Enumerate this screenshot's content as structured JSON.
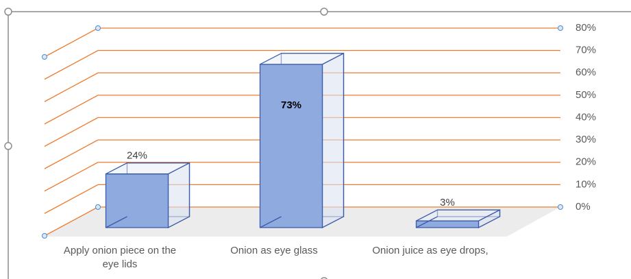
{
  "chart_data": {
    "type": "bar3d",
    "categories": [
      "Apply onion piece on the eye lids",
      "Onion as eye glass",
      "Onion juice as eye drops,"
    ],
    "values": [
      24,
      73,
      3
    ],
    "value_labels": [
      "24%",
      "73%",
      "3%"
    ],
    "color": "#8eaadf",
    "grid_color": "#ed7d31",
    "ylim": [
      0,
      80
    ],
    "yticks": [
      {
        "value": 0,
        "label": "0%"
      },
      {
        "value": 10,
        "label": "10%"
      },
      {
        "value": 20,
        "label": "20%"
      },
      {
        "value": 30,
        "label": "30%"
      },
      {
        "value": 40,
        "label": "40%"
      },
      {
        "value": 50,
        "label": "50%"
      },
      {
        "value": 60,
        "label": "60%"
      },
      {
        "value": 70,
        "label": "70%"
      },
      {
        "value": 80,
        "label": "80%"
      }
    ],
    "grid": true
  }
}
